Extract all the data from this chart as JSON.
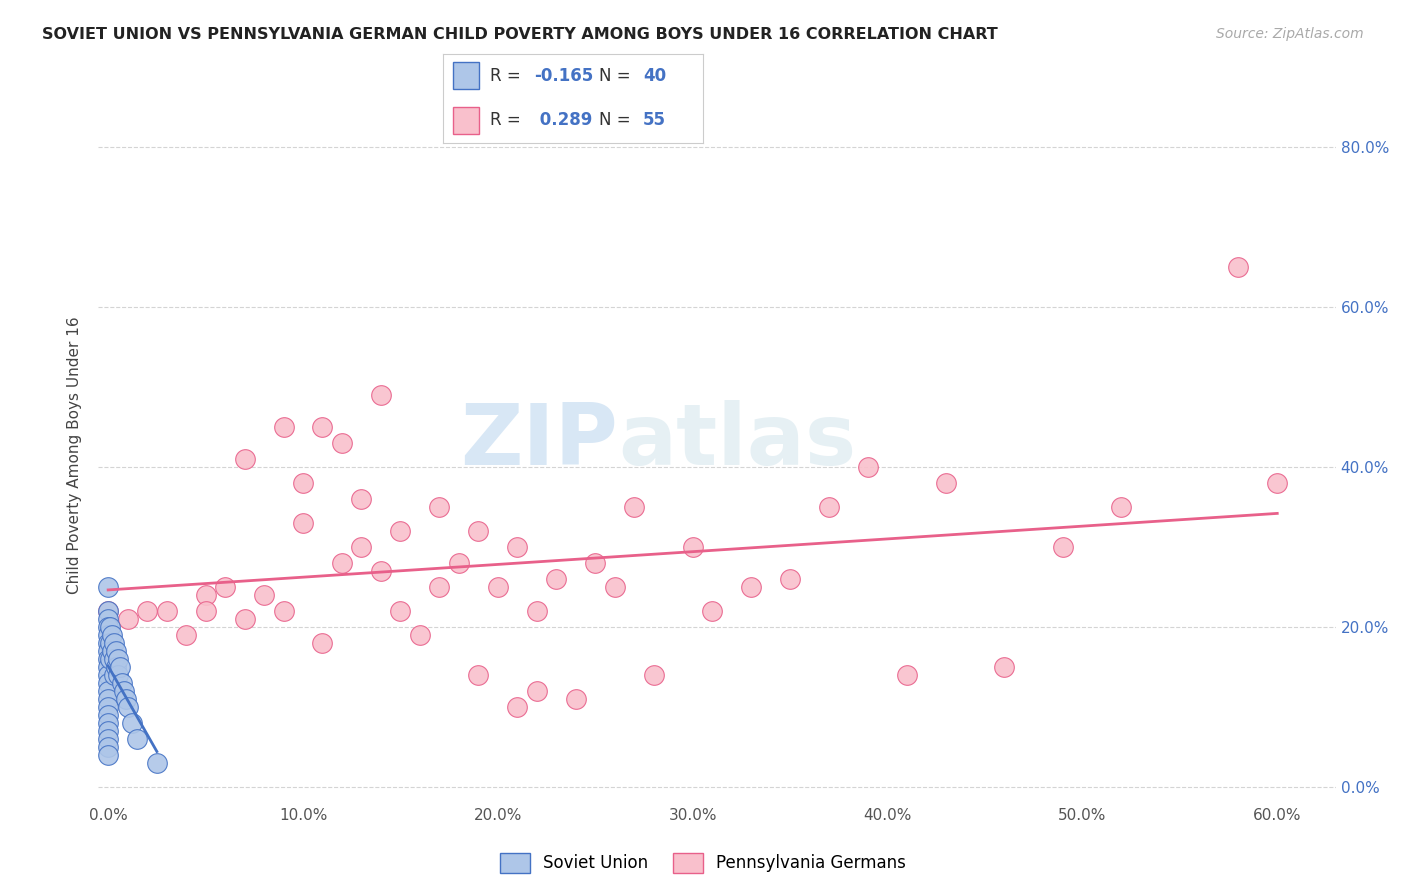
{
  "title": "SOVIET UNION VS PENNSYLVANIA GERMAN CHILD POVERTY AMONG BOYS UNDER 16 CORRELATION CHART",
  "source": "Source: ZipAtlas.com",
  "ylabel": "Child Poverty Among Boys Under 16",
  "x_ticks": [
    0.0,
    0.1,
    0.2,
    0.3,
    0.4,
    0.5,
    0.6
  ],
  "x_tick_labels": [
    "0.0%",
    "10.0%",
    "20.0%",
    "30.0%",
    "40.0%",
    "50.0%",
    "60.0%"
  ],
  "y_ticks": [
    0.0,
    0.2,
    0.4,
    0.6,
    0.8
  ],
  "y_tick_labels_right": [
    "0.0%",
    "20.0%",
    "40.0%",
    "60.0%",
    "80.0%"
  ],
  "xlim": [
    -0.005,
    0.63
  ],
  "ylim": [
    -0.02,
    0.85
  ],
  "series1_name": "Soviet Union",
  "series1_fill_color": "#aec6e8",
  "series1_edge_color": "#4472c4",
  "series1_line_color": "#4472c4",
  "series1_R": -0.165,
  "series1_N": 40,
  "series1_x": [
    0.0,
    0.0,
    0.0,
    0.0,
    0.0,
    0.0,
    0.0,
    0.0,
    0.0,
    0.0,
    0.0,
    0.0,
    0.0,
    0.0,
    0.0,
    0.0,
    0.0,
    0.0,
    0.0,
    0.0,
    0.001,
    0.001,
    0.001,
    0.002,
    0.002,
    0.003,
    0.003,
    0.003,
    0.004,
    0.004,
    0.005,
    0.005,
    0.006,
    0.007,
    0.008,
    0.009,
    0.01,
    0.012,
    0.015,
    0.025
  ],
  "series1_y": [
    0.25,
    0.22,
    0.21,
    0.2,
    0.19,
    0.18,
    0.17,
    0.16,
    0.15,
    0.14,
    0.13,
    0.12,
    0.11,
    0.1,
    0.09,
    0.08,
    0.07,
    0.06,
    0.05,
    0.04,
    0.2,
    0.18,
    0.16,
    0.19,
    0.17,
    0.18,
    0.16,
    0.14,
    0.17,
    0.15,
    0.16,
    0.14,
    0.15,
    0.13,
    0.12,
    0.11,
    0.1,
    0.08,
    0.06,
    0.03
  ],
  "series2_name": "Pennsylvania Germans",
  "series2_fill_color": "#f9c0cc",
  "series2_edge_color": "#e8608a",
  "series2_line_color": "#e8608a",
  "series2_R": 0.289,
  "series2_N": 55,
  "series2_x": [
    0.0,
    0.01,
    0.02,
    0.03,
    0.04,
    0.05,
    0.05,
    0.06,
    0.07,
    0.07,
    0.08,
    0.09,
    0.09,
    0.1,
    0.1,
    0.11,
    0.11,
    0.12,
    0.12,
    0.13,
    0.13,
    0.14,
    0.14,
    0.15,
    0.15,
    0.16,
    0.17,
    0.17,
    0.18,
    0.19,
    0.19,
    0.2,
    0.21,
    0.21,
    0.22,
    0.22,
    0.23,
    0.24,
    0.25,
    0.26,
    0.27,
    0.28,
    0.3,
    0.31,
    0.33,
    0.35,
    0.37,
    0.39,
    0.41,
    0.43,
    0.46,
    0.49,
    0.52,
    0.58,
    0.6
  ],
  "series2_y": [
    0.22,
    0.21,
    0.22,
    0.22,
    0.19,
    0.24,
    0.22,
    0.25,
    0.21,
    0.41,
    0.24,
    0.45,
    0.22,
    0.33,
    0.38,
    0.18,
    0.45,
    0.28,
    0.43,
    0.3,
    0.36,
    0.27,
    0.49,
    0.22,
    0.32,
    0.19,
    0.25,
    0.35,
    0.28,
    0.14,
    0.32,
    0.25,
    0.1,
    0.3,
    0.12,
    0.22,
    0.26,
    0.11,
    0.28,
    0.25,
    0.35,
    0.14,
    0.3,
    0.22,
    0.25,
    0.26,
    0.35,
    0.4,
    0.14,
    0.38,
    0.15,
    0.3,
    0.35,
    0.65,
    0.38
  ],
  "watermark_zip": "ZIP",
  "watermark_atlas": "atlas",
  "background_color": "#ffffff",
  "grid_color": "#d0d0d0",
  "legend_text_color": "#333333",
  "legend_num_color": "#4472c4"
}
